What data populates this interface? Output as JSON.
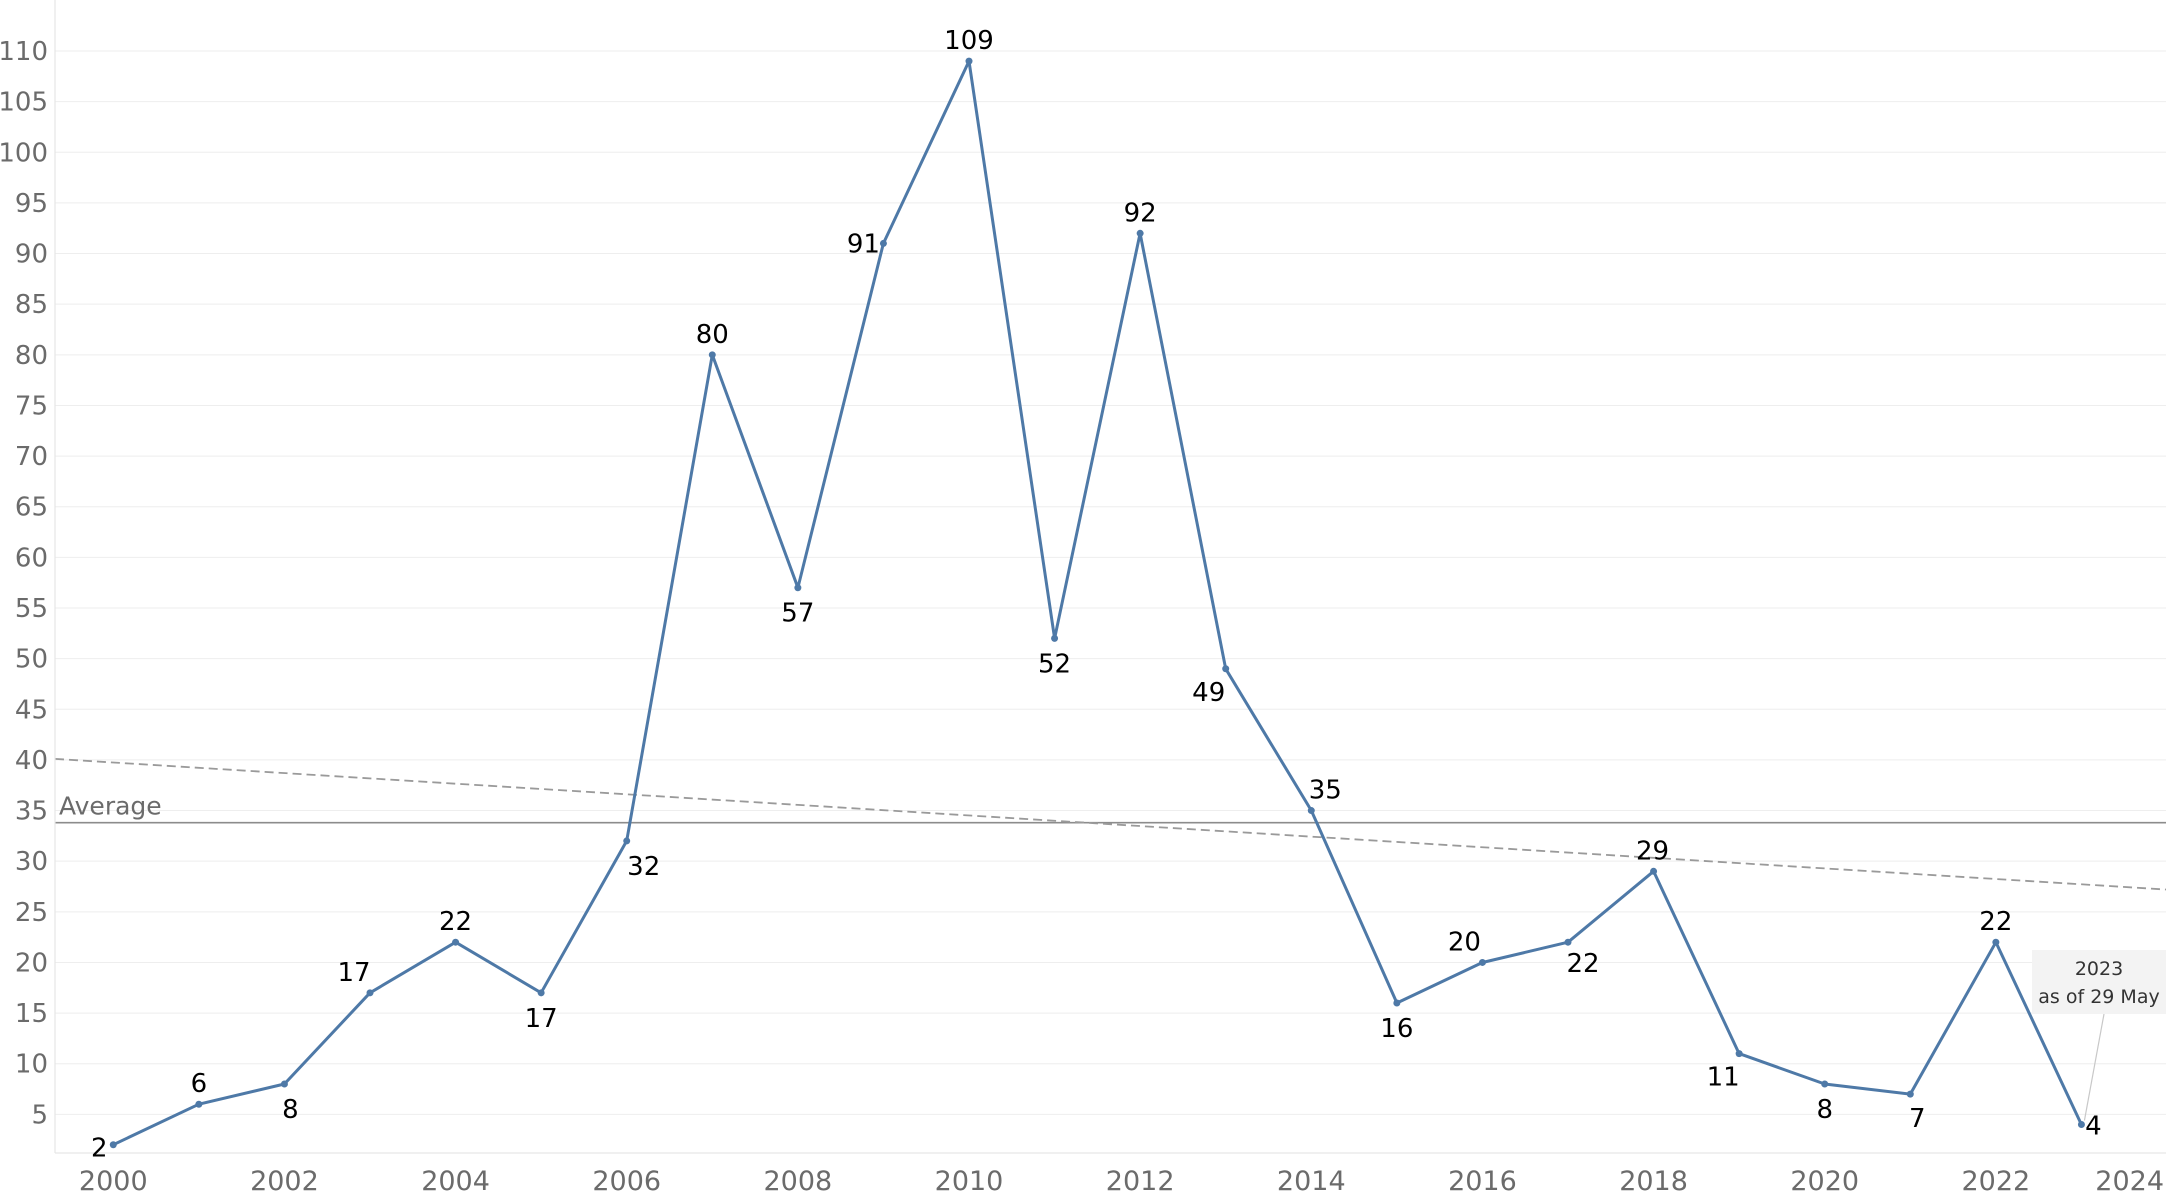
{
  "chart_data": {
    "type": "line",
    "x": [
      2000,
      2001,
      2002,
      2003,
      2004,
      2005,
      2006,
      2007,
      2008,
      2009,
      2010,
      2011,
      2012,
      2013,
      2014,
      2015,
      2016,
      2017,
      2018,
      2019,
      2020,
      2021,
      2022,
      2023
    ],
    "series": [
      {
        "values": [
          2,
          6,
          8,
          17,
          22,
          17,
          32,
          80,
          57,
          91,
          109,
          52,
          92,
          49,
          35,
          16,
          20,
          22,
          29,
          11,
          8,
          7,
          22,
          4
        ]
      }
    ],
    "xlim": [
      1999.5,
      2024
    ],
    "ylim": [
      0,
      115
    ],
    "x_ticks": [
      "2000",
      "2002",
      "2004",
      "2006",
      "2008",
      "2010",
      "2012",
      "2014",
      "2016",
      "2018",
      "2020",
      "2022",
      "2024"
    ],
    "y_ticks": [
      "5",
      "10",
      "15",
      "20",
      "25",
      "30",
      "35",
      "40",
      "45",
      "50",
      "55",
      "60",
      "65",
      "70",
      "75",
      "80",
      "85",
      "90",
      "95",
      "100",
      "105",
      "110"
    ],
    "grid": "horizontal",
    "reference_line": {
      "label": "Average",
      "value": 33.8
    },
    "trend_line": {
      "style": "dashed",
      "from": [
        1999.5,
        40.1
      ],
      "to": [
        2024,
        27.2
      ]
    },
    "annotation": {
      "x": 2023,
      "y": 4,
      "line1": "2023",
      "line2": "as of 29 May"
    },
    "colors": {
      "line": "#4e79a7",
      "average": "#8c8c8c",
      "trend": "#9a9a9a",
      "grid": "#eeeeee"
    }
  }
}
